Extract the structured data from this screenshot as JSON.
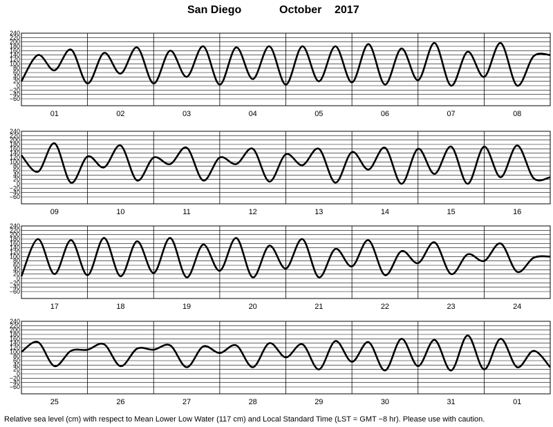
{
  "title": {
    "location": "San Diego",
    "month": "October",
    "year": "2017"
  },
  "footer": "Relative sea level (cm) with respect to Mean Lower Low Water (117 cm) and Local Standard Time (LST = GMT −8 hr). Please use with caution.",
  "chart_data": [
    {
      "type": "line",
      "ylim": [
        -60,
        240
      ],
      "y_ticks": [
        240,
        220,
        200,
        180,
        160,
        140,
        120,
        100,
        80,
        60,
        40,
        20,
        0,
        -20,
        -40,
        -60
      ],
      "day_labels": [
        "01",
        "02",
        "03",
        "04",
        "05",
        "06",
        "07",
        "08"
      ],
      "x_unit": "hours",
      "x_range": [
        0,
        192
      ],
      "grid": true,
      "series": [
        {
          "x": [
            0,
            6,
            12,
            18,
            24,
            30,
            36,
            42,
            48,
            54,
            60,
            66,
            72,
            78,
            84,
            90,
            96,
            102,
            108,
            114,
            120,
            126,
            132,
            138,
            144,
            150,
            156,
            162,
            168,
            174,
            180,
            186,
            192
          ],
          "values": [
            20,
            140,
            70,
            165,
            10,
            150,
            55,
            175,
            10,
            160,
            40,
            180,
            5,
            175,
            30,
            180,
            5,
            180,
            20,
            180,
            15,
            190,
            5,
            170,
            25,
            195,
            0,
            155,
            40,
            195,
            0,
            135,
            140
          ]
        }
      ]
    },
    {
      "type": "line",
      "ylim": [
        -60,
        240
      ],
      "y_ticks": [
        240,
        220,
        200,
        180,
        160,
        140,
        120,
        100,
        80,
        60,
        40,
        20,
        0,
        -20,
        -40,
        -60
      ],
      "day_labels": [
        "09",
        "10",
        "11",
        "12",
        "13",
        "14",
        "15",
        "16"
      ],
      "x_unit": "hours",
      "x_range": [
        0,
        192
      ],
      "grid": true,
      "series": [
        {
          "x": [
            0,
            6,
            12,
            18,
            24,
            30,
            36,
            42,
            48,
            54,
            60,
            66,
            72,
            78,
            84,
            90,
            96,
            102,
            108,
            114,
            120,
            126,
            132,
            138,
            144,
            150,
            156,
            162,
            168,
            174,
            180,
            186,
            192
          ],
          "values": [
            130,
            55,
            185,
            5,
            125,
            75,
            175,
            15,
            120,
            90,
            165,
            15,
            120,
            90,
            160,
            10,
            135,
            85,
            160,
            5,
            145,
            65,
            165,
            0,
            160,
            45,
            170,
            0,
            170,
            30,
            175,
            25,
            30
          ]
        }
      ]
    },
    {
      "type": "line",
      "ylim": [
        -60,
        240
      ],
      "y_ticks": [
        240,
        220,
        200,
        180,
        160,
        140,
        120,
        100,
        80,
        60,
        40,
        20,
        0,
        -20,
        -40,
        -60
      ],
      "day_labels": [
        "17",
        "18",
        "19",
        "20",
        "21",
        "22",
        "23",
        "24"
      ],
      "x_unit": "hours",
      "x_range": [
        0,
        192
      ],
      "grid": true,
      "series": [
        {
          "x": [
            0,
            6,
            12,
            18,
            24,
            30,
            36,
            42,
            48,
            54,
            60,
            66,
            72,
            78,
            84,
            90,
            96,
            102,
            108,
            114,
            120,
            126,
            132,
            138,
            144,
            150,
            156,
            162,
            168,
            174,
            180,
            186,
            192
          ],
          "values": [
            10,
            180,
            20,
            175,
            15,
            185,
            10,
            170,
            25,
            185,
            5,
            155,
            35,
            185,
            5,
            150,
            45,
            180,
            5,
            135,
            55,
            175,
            15,
            125,
            70,
            165,
            20,
            110,
            80,
            160,
            30,
            95,
            100
          ]
        }
      ]
    },
    {
      "type": "line",
      "ylim": [
        -60,
        240
      ],
      "y_ticks": [
        240,
        220,
        200,
        180,
        160,
        140,
        120,
        100,
        80,
        60,
        40,
        20,
        0,
        -20,
        -40,
        -60
      ],
      "day_labels": [
        "25",
        "26",
        "27",
        "28",
        "29",
        "30",
        "31",
        "01"
      ],
      "x_unit": "hours",
      "x_range": [
        0,
        192
      ],
      "grid": true,
      "series": [
        {
          "x": [
            0,
            6,
            12,
            18,
            24,
            30,
            36,
            42,
            48,
            54,
            60,
            66,
            72,
            78,
            84,
            90,
            96,
            102,
            108,
            114,
            120,
            126,
            132,
            138,
            144,
            150,
            156,
            162,
            168,
            174,
            180,
            186,
            192
          ],
          "values": [
            100,
            145,
            35,
            105,
            110,
            135,
            35,
            115,
            110,
            130,
            30,
            125,
            95,
            130,
            30,
            140,
            75,
            135,
            20,
            150,
            55,
            145,
            15,
            160,
            35,
            155,
            15,
            175,
            20,
            160,
            30,
            105,
            30
          ]
        }
      ]
    }
  ]
}
